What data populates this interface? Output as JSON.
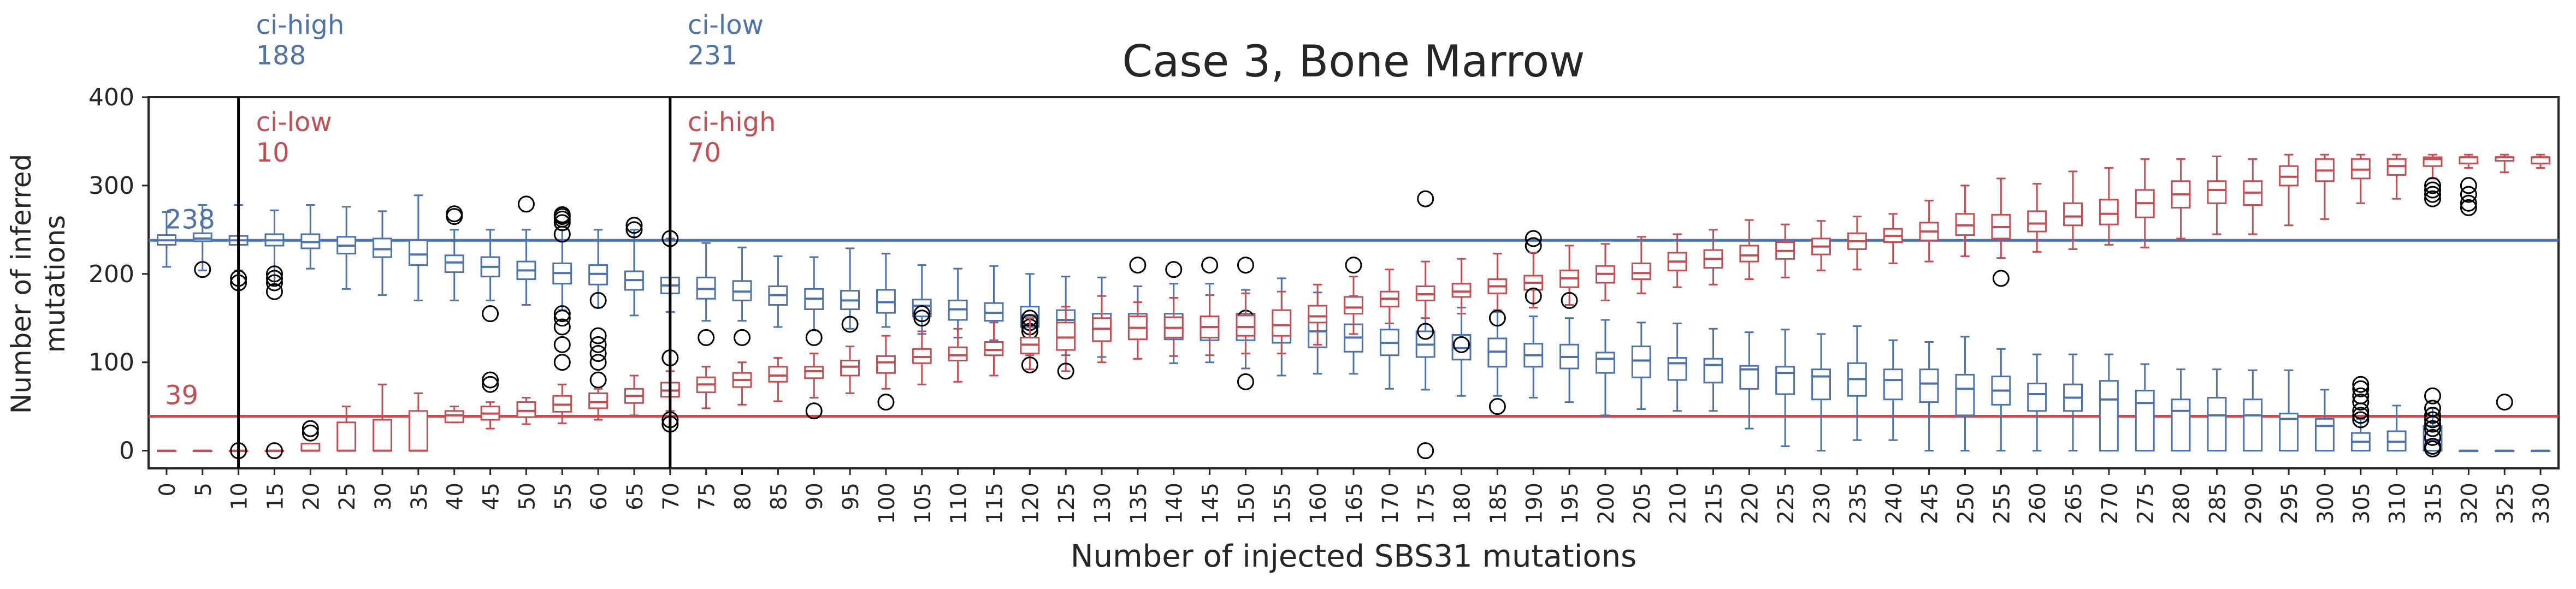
{
  "chart_data": {
    "type": "box",
    "title": "Case 3, Bone Marrow",
    "xlabel": "Number of injected SBS31 mutations",
    "ylabel": "Number of inferred mutations",
    "ylabel_lines": [
      "Number of inferred",
      "mutations"
    ],
    "ylim": [
      -20,
      400
    ],
    "yticks": [
      0,
      100,
      200,
      300,
      400
    ],
    "categories": [
      "0",
      "5",
      "10",
      "15",
      "20",
      "25",
      "30",
      "35",
      "40",
      "45",
      "50",
      "55",
      "60",
      "65",
      "70",
      "75",
      "80",
      "85",
      "90",
      "95",
      "100",
      "105",
      "110",
      "115",
      "120",
      "125",
      "130",
      "135",
      "140",
      "145",
      "150",
      "155",
      "160",
      "165",
      "170",
      "175",
      "180",
      "185",
      "190",
      "195",
      "200",
      "205",
      "210",
      "215",
      "220",
      "225",
      "230",
      "235",
      "240",
      "245",
      "250",
      "255",
      "260",
      "265",
      "270",
      "275",
      "280",
      "285",
      "290",
      "295",
      "300",
      "305",
      "310",
      "315",
      "320",
      "325",
      "330"
    ],
    "grid": false,
    "colors": {
      "blue": "#4c72b0",
      "red": "#c44e52",
      "axis": "#262626"
    },
    "series": [
      {
        "color": "#4c72b0",
        "medians": [
          238,
          240,
          238,
          238,
          236,
          232,
          228,
          222,
          213,
          208,
          204,
          201,
          200,
          193,
          187,
          183,
          180,
          176,
          172,
          170,
          168,
          164,
          160,
          156,
          153,
          148,
          143,
          140,
          140,
          140,
          140,
          137,
          135,
          128,
          122,
          120,
          116,
          112,
          108,
          106,
          104,
          102,
          99,
          97,
          92,
          88,
          84,
          81,
          80,
          76,
          70,
          68,
          64,
          60,
          58,
          54,
          45,
          40,
          40,
          36,
          28,
          10,
          10,
          12,
          0,
          0,
          0
        ],
        "q1": [
          233,
          237,
          233,
          232,
          229,
          223,
          219,
          210,
          202,
          197,
          194,
          189,
          188,
          182,
          178,
          172,
          170,
          165,
          160,
          160,
          156,
          152,
          148,
          147,
          140,
          130,
          128,
          128,
          126,
          125,
          125,
          122,
          117,
          112,
          108,
          106,
          103,
          95,
          95,
          93,
          88,
          83,
          80,
          77,
          70,
          64,
          58,
          62,
          58,
          55,
          40,
          52,
          45,
          45,
          0,
          0,
          0,
          0,
          0,
          0,
          0,
          0,
          0,
          0,
          0,
          0,
          0
        ],
        "q3": [
          244,
          246,
          243,
          245,
          245,
          242,
          240,
          238,
          221,
          219,
          214,
          212,
          210,
          203,
          196,
          196,
          192,
          186,
          183,
          181,
          182,
          171,
          170,
          167,
          163,
          159,
          155,
          155,
          155,
          150,
          155,
          156,
          152,
          143,
          137,
          135,
          131,
          127,
          121,
          120,
          111,
          118,
          105,
          104,
          96,
          95,
          92,
          99,
          92,
          92,
          86,
          84,
          76,
          75,
          79,
          68,
          58,
          60,
          58,
          42,
          36,
          20,
          22,
          28,
          0,
          0,
          0
        ],
        "wlo": [
          208,
          204,
          204,
          188,
          206,
          183,
          176,
          170,
          170,
          170,
          165,
          159,
          162,
          153,
          157,
          147,
          147,
          140,
          136,
          138,
          140,
          132,
          128,
          125,
          108,
          108,
          106,
          104,
          99,
          100,
          93,
          85,
          87,
          87,
          70,
          69,
          62,
          62,
          60,
          55,
          40,
          47,
          45,
          45,
          25,
          5,
          0,
          12,
          12,
          0,
          0,
          0,
          0,
          0,
          0,
          0,
          0,
          0,
          0,
          0,
          0,
          0,
          0,
          0,
          0,
          0,
          0
        ],
        "whi": [
          270,
          278,
          278,
          272,
          278,
          276,
          271,
          289,
          250,
          250,
          250,
          250,
          250,
          250,
          240,
          235,
          230,
          220,
          219,
          229,
          223,
          210,
          206,
          209,
          200,
          197,
          196,
          186,
          189,
          189,
          182,
          195,
          179,
          175,
          177,
          170,
          162,
          157,
          152,
          150,
          148,
          145,
          144,
          138,
          134,
          137,
          132,
          141,
          125,
          123,
          129,
          115,
          109,
          109,
          109,
          98,
          92,
          92,
          91,
          91,
          69,
          36,
          51,
          48,
          0,
          0,
          0
        ],
        "outliers": [
          [],
          [
            205
          ],
          [
            195,
            190
          ],
          [
            200,
            195,
            190,
            180
          ],
          [],
          [],
          [],
          [],
          [
            268,
            265
          ],
          [
            155,
            80,
            75
          ],
          [
            279
          ],
          [
            267,
            265,
            262,
            258,
            245,
            155,
            150,
            140,
            120,
            100
          ],
          [
            170,
            130,
            120,
            110,
            100,
            80
          ],
          [
            255,
            250
          ],
          [
            240,
            105,
            30,
            35
          ],
          [
            128
          ],
          [
            128
          ],
          [],
          [
            128
          ],
          [
            143
          ],
          [],
          [
            155,
            150
          ],
          [],
          [],
          [
            150,
            145,
            140,
            135
          ],
          [],
          [],
          [
            210
          ],
          [
            205
          ],
          [
            210
          ],
          [
            210,
            150,
            78
          ],
          [],
          [],
          [
            210
          ],
          [],
          [
            285,
            0
          ],
          [],
          [
            50
          ],
          [
            240,
            232
          ],
          [],
          [],
          [],
          [],
          [],
          [],
          [],
          [],
          [],
          [],
          [],
          [],
          [],
          [],
          [],
          [],
          [],
          [],
          [],
          [],
          [],
          [],
          [
            75,
            70,
            62,
            55,
            45,
            40,
            35
          ],
          [],
          [
            62,
            48,
            40,
            35,
            30,
            25,
            15,
            5,
            2
          ],
          [],
          [
            55
          ],
          []
        ]
      },
      {
        "color": "#c44e52",
        "medians": [
          0,
          0,
          0,
          0,
          0,
          0,
          0,
          0,
          40,
          42,
          45,
          52,
          55,
          62,
          68,
          75,
          80,
          85,
          90,
          95,
          100,
          106,
          108,
          114,
          120,
          128,
          138,
          139,
          139,
          140,
          140,
          142,
          152,
          162,
          172,
          177,
          180,
          186,
          190,
          195,
          200,
          201,
          214,
          217,
          221,
          226,
          231,
          237,
          243,
          248,
          255,
          253,
          257,
          265,
          268,
          280,
          290,
          295,
          292,
          310,
          317,
          318,
          322,
          330,
          332,
          332,
          332
        ],
        "q1": [
          0,
          0,
          0,
          0,
          0,
          0,
          0,
          0,
          32,
          35,
          38,
          44,
          48,
          54,
          61,
          66,
          72,
          78,
          82,
          85,
          88,
          99,
          102,
          108,
          110,
          114,
          124,
          126,
          128,
          128,
          130,
          130,
          145,
          155,
          163,
          170,
          174,
          178,
          182,
          185,
          190,
          194,
          204,
          207,
          214,
          217,
          222,
          228,
          236,
          238,
          244,
          240,
          248,
          255,
          256,
          264,
          275,
          280,
          278,
          300,
          305,
          308,
          312,
          322,
          325,
          328,
          325
        ],
        "q3": [
          0,
          0,
          0,
          0,
          8,
          32,
          35,
          45,
          45,
          50,
          55,
          62,
          65,
          70,
          77,
          83,
          88,
          95,
          95,
          102,
          107,
          115,
          117,
          123,
          128,
          145,
          150,
          152,
          151,
          152,
          153,
          159,
          164,
          174,
          180,
          186,
          189,
          194,
          198,
          204,
          209,
          212,
          224,
          227,
          232,
          236,
          240,
          246,
          251,
          258,
          268,
          267,
          271,
          280,
          284,
          295,
          305,
          305,
          305,
          322,
          330,
          330,
          330,
          332,
          332,
          332,
          332
        ],
        "wlo": [
          0,
          0,
          0,
          0,
          0,
          0,
          0,
          0,
          32,
          25,
          30,
          31,
          35,
          40,
          45,
          48,
          52,
          56,
          60,
          65,
          70,
          75,
          78,
          85,
          92,
          90,
          100,
          104,
          107,
          108,
          110,
          110,
          120,
          132,
          144,
          150,
          155,
          159,
          162,
          165,
          170,
          178,
          185,
          188,
          194,
          196,
          204,
          205,
          212,
          214,
          220,
          218,
          225,
          228,
          233,
          230,
          240,
          245,
          245,
          255,
          262,
          280,
          285,
          308,
          320,
          315,
          320
        ],
        "whi": [
          0,
          0,
          0,
          0,
          0,
          50,
          75,
          65,
          50,
          55,
          60,
          75,
          70,
          85,
          90,
          95,
          100,
          105,
          110,
          118,
          130,
          135,
          138,
          145,
          150,
          163,
          175,
          168,
          173,
          176,
          178,
          180,
          188,
          197,
          205,
          214,
          217,
          223,
          224,
          232,
          234,
          242,
          245,
          250,
          261,
          256,
          260,
          265,
          268,
          283,
          300,
          308,
          302,
          316,
          320,
          330,
          330,
          333,
          330,
          335,
          335,
          335,
          335,
          335,
          335,
          335,
          335
        ],
        "outliers": [
          [],
          [],
          [
            0
          ],
          [
            0
          ],
          [
            25,
            20
          ],
          [],
          [],
          [],
          [],
          [],
          [],
          [],
          [],
          [],
          [],
          [],
          [],
          [],
          [
            45
          ],
          [],
          [
            55
          ],
          [],
          [],
          [],
          [
            97
          ],
          [
            90
          ],
          [],
          [],
          [],
          [],
          [],
          [],
          [],
          [],
          [],
          [
            135
          ],
          [
            120
          ],
          [
            150
          ],
          [
            175
          ],
          [
            170
          ],
          [],
          [],
          [],
          [],
          [],
          [],
          [],
          [],
          [],
          [],
          [],
          [
            195
          ],
          [],
          [],
          [],
          [],
          [],
          [],
          [],
          [],
          [],
          [],
          [],
          [
            300,
            295,
            290,
            285
          ],
          [
            300,
            290,
            280,
            275
          ],
          [],
          []
        ]
      }
    ],
    "hlines": [
      {
        "label": "238",
        "value": 238,
        "color": "#4c72b0"
      },
      {
        "label": "39",
        "value": 39,
        "color": "#c44e52"
      }
    ],
    "vlines": [
      {
        "category": "10",
        "top_label": "ci-high",
        "top_value": "188",
        "inner_label": "ci-low",
        "inner_value": "10"
      },
      {
        "category": "70",
        "top_label": "ci-low",
        "top_value": "231",
        "inner_label": "ci-high",
        "inner_value": "70"
      }
    ]
  }
}
